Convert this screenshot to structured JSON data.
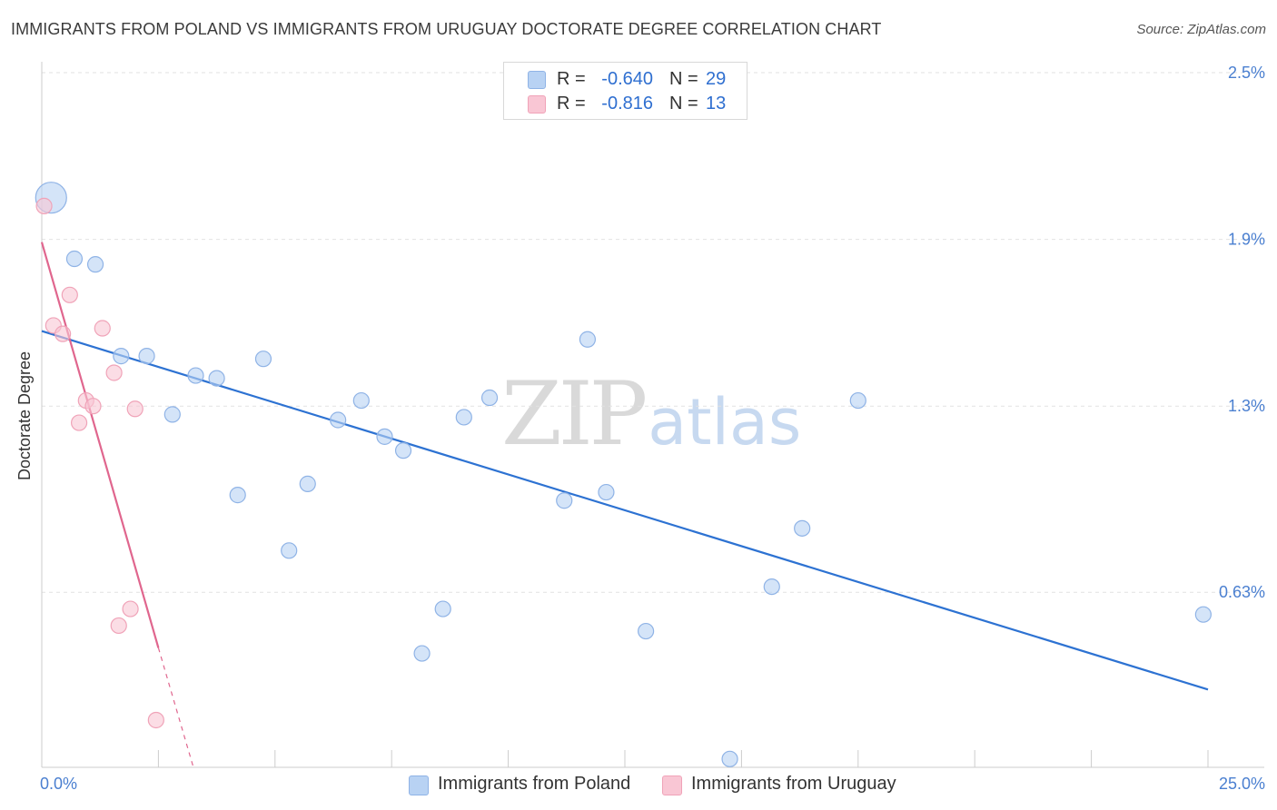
{
  "title": "IMMIGRANTS FROM POLAND VS IMMIGRANTS FROM URUGUAY DOCTORATE DEGREE CORRELATION CHART",
  "source": "Source: ZipAtlas.com",
  "watermark": {
    "zip": "ZIP",
    "atlas": "atlas"
  },
  "legend": {
    "poland": {
      "r_label": "R =",
      "r_value": "-0.640",
      "n_label": "N =",
      "n_value": "29"
    },
    "uruguay": {
      "r_label": "R =",
      "r_value": "-0.816",
      "n_label": "N =",
      "n_value": "13"
    }
  },
  "bottom_legend": {
    "poland": "Immigrants from Poland",
    "uruguay": "Immigrants from Uruguay"
  },
  "colors": {
    "poland_fill": "#b8d2f3",
    "poland_stroke": "#8fb3e6",
    "poland_line": "#2d72d2",
    "uruguay_fill": "#f9c6d4",
    "uruguay_stroke": "#f0a3b8",
    "uruguay_line": "#e0668e",
    "grid": "#e2e2e2",
    "tick_label": "#4a7fd0"
  },
  "chart_data": {
    "type": "scatter",
    "title": "IMMIGRANTS FROM POLAND VS IMMIGRANTS FROM URUGUAY DOCTORATE DEGREE CORRELATION CHART",
    "xlabel": "",
    "ylabel": "Doctorate Degree",
    "xlim": [
      0,
      25
    ],
    "ylim": [
      0.0,
      2.5
    ],
    "x_tick_labels": {
      "min": "0.0%",
      "max": "25.0%"
    },
    "y_ticks": [
      {
        "value": 2.5,
        "label": "2.5%"
      },
      {
        "value": 1.9,
        "label": "1.9%"
      },
      {
        "value": 1.3,
        "label": "1.3%"
      },
      {
        "value": 0.63,
        "label": "0.63%"
      }
    ],
    "series": [
      {
        "name": "Immigrants from Poland",
        "color": "#b8d2f3",
        "points": [
          {
            "x": 0.2,
            "y": 2.05,
            "size": "large"
          },
          {
            "x": 0.7,
            "y": 1.83
          },
          {
            "x": 1.15,
            "y": 1.81
          },
          {
            "x": 1.7,
            "y": 1.48
          },
          {
            "x": 2.25,
            "y": 1.48
          },
          {
            "x": 2.8,
            "y": 1.27
          },
          {
            "x": 3.3,
            "y": 1.41
          },
          {
            "x": 3.75,
            "y": 1.4
          },
          {
            "x": 4.2,
            "y": 0.98
          },
          {
            "x": 4.75,
            "y": 1.47
          },
          {
            "x": 5.3,
            "y": 0.78
          },
          {
            "x": 5.7,
            "y": 1.02
          },
          {
            "x": 6.35,
            "y": 1.25
          },
          {
            "x": 6.85,
            "y": 1.32
          },
          {
            "x": 7.35,
            "y": 1.19
          },
          {
            "x": 7.75,
            "y": 1.14
          },
          {
            "x": 8.15,
            "y": 0.41
          },
          {
            "x": 8.6,
            "y": 0.57
          },
          {
            "x": 9.05,
            "y": 1.26
          },
          {
            "x": 9.6,
            "y": 1.33
          },
          {
            "x": 11.2,
            "y": 0.96
          },
          {
            "x": 11.7,
            "y": 1.54
          },
          {
            "x": 12.1,
            "y": 0.99
          },
          {
            "x": 12.95,
            "y": 0.49
          },
          {
            "x": 14.75,
            "y": 0.03
          },
          {
            "x": 15.65,
            "y": 0.65
          },
          {
            "x": 16.3,
            "y": 0.86
          },
          {
            "x": 17.5,
            "y": 1.32
          },
          {
            "x": 24.9,
            "y": 0.55
          }
        ],
        "trendline": {
          "x": [
            0,
            25
          ],
          "y": [
            1.57,
            0.28
          ]
        }
      },
      {
        "name": "Immigrants from Uruguay",
        "color": "#f9c6d4",
        "points": [
          {
            "x": 0.05,
            "y": 2.02
          },
          {
            "x": 0.25,
            "y": 1.59
          },
          {
            "x": 0.45,
            "y": 1.56
          },
          {
            "x": 0.6,
            "y": 1.7
          },
          {
            "x": 0.8,
            "y": 1.24
          },
          {
            "x": 0.95,
            "y": 1.32
          },
          {
            "x": 1.1,
            "y": 1.3
          },
          {
            "x": 1.3,
            "y": 1.58
          },
          {
            "x": 1.55,
            "y": 1.42
          },
          {
            "x": 1.65,
            "y": 0.51
          },
          {
            "x": 1.9,
            "y": 0.57
          },
          {
            "x": 2.0,
            "y": 1.29
          },
          {
            "x": 2.45,
            "y": 0.17
          }
        ],
        "trendline": {
          "x": [
            0,
            2.5
          ],
          "y": [
            1.89,
            0.43
          ],
          "dashed_extension": {
            "x": [
              2.5,
              3.25
            ],
            "y": [
              0.43,
              0.0
            ]
          }
        }
      }
    ]
  }
}
